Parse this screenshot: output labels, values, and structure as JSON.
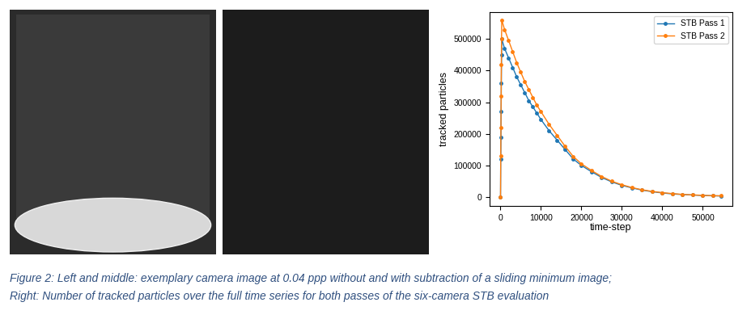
{
  "caption": [
    "Figure 2: Left and middle: exemplary camera image at 0.04 ppp without and with subtraction of a sliding minimum image;",
    "Right: Number of tracked particles over the full time series for both passes of the six-camera STB evaluation"
  ],
  "chart_data": {
    "type": "line",
    "x_label": "time-step",
    "y_label": "tracked particles",
    "x": [
      0,
      50,
      100,
      150,
      200,
      250,
      300,
      1000,
      2000,
      3000,
      4000,
      5000,
      6000,
      7000,
      8000,
      9000,
      10000,
      12000,
      14000,
      16000,
      18000,
      20000,
      22500,
      25000,
      27500,
      30000,
      32500,
      35000,
      37500,
      40000,
      42500,
      45000,
      47500,
      50000,
      52500,
      54500
    ],
    "series": [
      {
        "name": "STB Pass 1",
        "color": "#1f77b4",
        "marker": "o",
        "line_style": "solid",
        "values": [
          0,
          120000,
          190000,
          270000,
          360000,
          450000,
          500000,
          470000,
          440000,
          410000,
          380000,
          355000,
          330000,
          305000,
          285000,
          265000,
          245000,
          210000,
          180000,
          150000,
          120000,
          100000,
          80000,
          62000,
          48000,
          37000,
          29000,
          22000,
          17000,
          13000,
          10000,
          8000,
          6500,
          5000,
          4000,
          3500
        ]
      },
      {
        "name": "STB Pass 2",
        "color": "#ff7f0e",
        "marker": "o",
        "line_style": "solid",
        "values": [
          0,
          130000,
          220000,
          320000,
          420000,
          500000,
          560000,
          530000,
          495000,
          460000,
          425000,
          395000,
          365000,
          340000,
          315000,
          290000,
          270000,
          230000,
          195000,
          160000,
          128000,
          105000,
          84000,
          65000,
          50000,
          39000,
          30000,
          23000,
          18000,
          14000,
          11000,
          8500,
          7000,
          5500,
          4500,
          4000
        ]
      }
    ],
    "xlim": [
      -2700,
      57300
    ],
    "xticks": [
      0,
      10000,
      20000,
      30000,
      40000,
      50000
    ],
    "ylim": [
      -28000,
      585000
    ],
    "yticks": [
      0,
      100000,
      200000,
      300000,
      400000,
      500000
    ],
    "legend": "upper right",
    "grid": false
  }
}
